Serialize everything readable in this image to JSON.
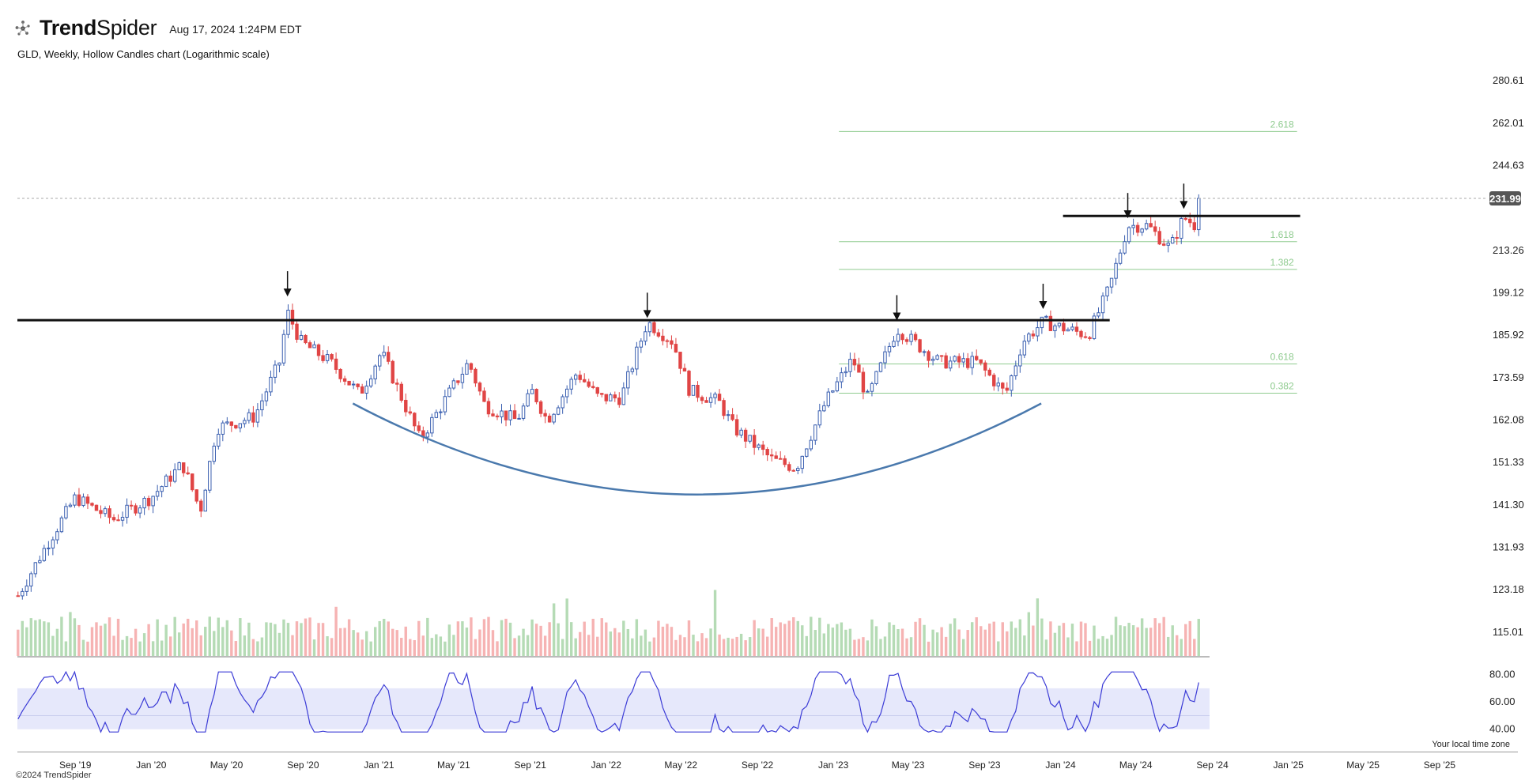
{
  "header": {
    "brand_bold": "Trend",
    "brand_light": "Spider",
    "timestamp": "Aug 17, 2024 1:24PM EDT"
  },
  "subtitle": "GLD, Weekly, Hollow Candles chart (Logarithmic scale)",
  "copyright": "©2024 TrendSpider",
  "timezone_note": "Your local time zone",
  "colors": {
    "up": "#3a5fb0",
    "down": "#e04545",
    "vol_up": "#b5dbb5",
    "vol_down": "#f6b3b3",
    "fib": "#8fcb8f",
    "rsi_line": "#3b3bd6",
    "rsi_band": "#e6e8fb",
    "curve": "#4a79ad",
    "price_badge": "#555555"
  },
  "chart_data": {
    "type": "candlestick",
    "symbol": "GLD",
    "interval": "Weekly",
    "scale": "log",
    "ylim": [
      115,
      285
    ],
    "y_ticks": [
      280.61,
      262.01,
      244.63,
      231.99,
      213.26,
      199.12,
      185.92,
      173.59,
      162.08,
      151.33,
      141.3,
      131.93,
      123.18,
      115.01
    ],
    "last_price": "231.99",
    "x_ticks": [
      "Sep '19",
      "Jan '20",
      "May '20",
      "Sep '20",
      "Jan '21",
      "May '21",
      "Sep '21",
      "Jan '22",
      "May '22",
      "Sep '22",
      "Jan '23",
      "May '23",
      "Sep '23",
      "Jan '24",
      "May '24",
      "Sep '24",
      "Jan '25",
      "May '25",
      "Sep '25"
    ],
    "x_start": "2019-05-31",
    "x_end": "2025-11-15",
    "price_path": [
      {
        "date": "2019-06-01",
        "close": 122
      },
      {
        "date": "2019-07-15",
        "close": 132
      },
      {
        "date": "2019-09-01",
        "close": 143
      },
      {
        "date": "2019-11-01",
        "close": 138
      },
      {
        "date": "2020-01-01",
        "close": 143
      },
      {
        "date": "2020-02-20",
        "close": 151
      },
      {
        "date": "2020-03-20",
        "close": 140
      },
      {
        "date": "2020-04-15",
        "close": 160
      },
      {
        "date": "2020-06-15",
        "close": 163
      },
      {
        "date": "2020-07-25",
        "close": 178
      },
      {
        "date": "2020-08-07",
        "close": 193
      },
      {
        "date": "2020-08-28",
        "close": 184
      },
      {
        "date": "2020-10-15",
        "close": 178
      },
      {
        "date": "2020-12-01",
        "close": 169
      },
      {
        "date": "2021-01-05",
        "close": 181
      },
      {
        "date": "2021-03-08",
        "close": 157
      },
      {
        "date": "2021-05-25",
        "close": 178
      },
      {
        "date": "2021-06-20",
        "close": 166
      },
      {
        "date": "2021-08-10",
        "close": 162
      },
      {
        "date": "2021-09-05",
        "close": 170
      },
      {
        "date": "2021-09-28",
        "close": 162
      },
      {
        "date": "2021-11-15",
        "close": 175
      },
      {
        "date": "2021-12-20",
        "close": 168
      },
      {
        "date": "2022-01-25",
        "close": 168
      },
      {
        "date": "2022-03-08",
        "close": 190
      },
      {
        "date": "2022-04-18",
        "close": 184
      },
      {
        "date": "2022-05-15",
        "close": 170
      },
      {
        "date": "2022-07-01",
        "close": 167
      },
      {
        "date": "2022-07-25",
        "close": 160
      },
      {
        "date": "2022-09-25",
        "close": 152
      },
      {
        "date": "2022-11-02",
        "close": 150
      },
      {
        "date": "2022-12-20",
        "close": 167
      },
      {
        "date": "2023-02-01",
        "close": 179
      },
      {
        "date": "2023-02-25",
        "close": 168
      },
      {
        "date": "2023-04-13",
        "close": 188
      },
      {
        "date": "2023-06-20",
        "close": 178
      },
      {
        "date": "2023-08-20",
        "close": 178
      },
      {
        "date": "2023-10-05",
        "close": 169
      },
      {
        "date": "2023-11-01",
        "close": 184
      },
      {
        "date": "2023-12-04",
        "close": 190
      },
      {
        "date": "2024-01-25",
        "close": 187
      },
      {
        "date": "2024-02-15",
        "close": 186
      },
      {
        "date": "2024-03-20",
        "close": 201
      },
      {
        "date": "2024-04-18",
        "close": 222
      },
      {
        "date": "2024-05-20",
        "close": 222
      },
      {
        "date": "2024-06-25",
        "close": 214
      },
      {
        "date": "2024-07-17",
        "close": 225
      },
      {
        "date": "2024-08-05",
        "close": 222
      },
      {
        "date": "2024-08-16",
        "close": 231.99
      }
    ],
    "indicators": {
      "rsi": {
        "y_ticks": [
          "80.00",
          "60.00",
          "40.00"
        ],
        "band": [
          40,
          70
        ],
        "midline": 50
      }
    },
    "horizontal_lines": [
      {
        "price": 190.5,
        "from": "2019-05-31",
        "to": "2024-03-20"
      },
      {
        "price": 225.5,
        "from": "2024-01-05",
        "to": "2025-01-20"
      }
    ],
    "fib_levels": [
      {
        "label": "2.618",
        "price": 258.5
      },
      {
        "label": "1.618",
        "price": 216.3
      },
      {
        "label": "1.382",
        "price": 206.8
      },
      {
        "label": "0.618",
        "price": 177.5
      },
      {
        "label": "0.382",
        "price": 169.3
      }
    ],
    "fib_from": "2023-01-10",
    "fib_to": "2025-01-15",
    "arrows": [
      "2020-08-07",
      "2022-03-08",
      "2023-04-13",
      "2023-12-04",
      "2024-04-18",
      "2024-07-17"
    ],
    "arc": {
      "from": "2020-11-20",
      "low": 143.7,
      "to": "2023-12-01"
    }
  }
}
